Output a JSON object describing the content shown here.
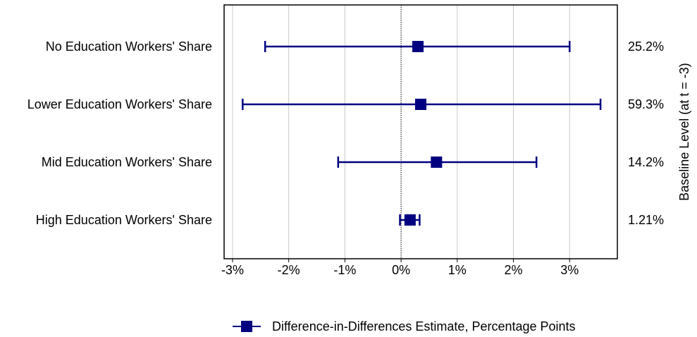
{
  "chart_data": {
    "type": "scatter",
    "subtype": "coefficient-plot",
    "orientation": "horizontal",
    "categories": [
      "No Education Workers' Share",
      "Lower Education Workers' Share",
      "Mid Education Workers' Share",
      "High Education Workers' Share"
    ],
    "series": [
      {
        "name": "Difference-in-Differences Estimate, Percentage Points",
        "color": "#000080",
        "marker": "square",
        "estimates": [
          0.3,
          0.35,
          0.63,
          0.16
        ],
        "ci_low": [
          -2.42,
          -2.82,
          -1.12,
          -0.02
        ],
        "ci_high": [
          3.0,
          3.55,
          2.41,
          0.33
        ]
      }
    ],
    "baseline_labels": [
      "25.2%",
      "59.3%",
      "14.2%",
      "1.21%"
    ],
    "x_ticks": [
      -3,
      -2,
      -1,
      0,
      1,
      2,
      3
    ],
    "x_tick_labels": [
      "-3%",
      "-2%",
      "-1%",
      "0%",
      "1%",
      "2%",
      "3%"
    ],
    "xlim": [
      -3.15,
      3.85
    ],
    "xlabel": "",
    "right_ylabel": "Baseline Level (at t = -3)",
    "grid": "vertical",
    "zero_line": "dotted",
    "legend_position": "bottom"
  },
  "legend": {
    "label": "Difference-in-Differences Estimate, Percentage Points"
  }
}
